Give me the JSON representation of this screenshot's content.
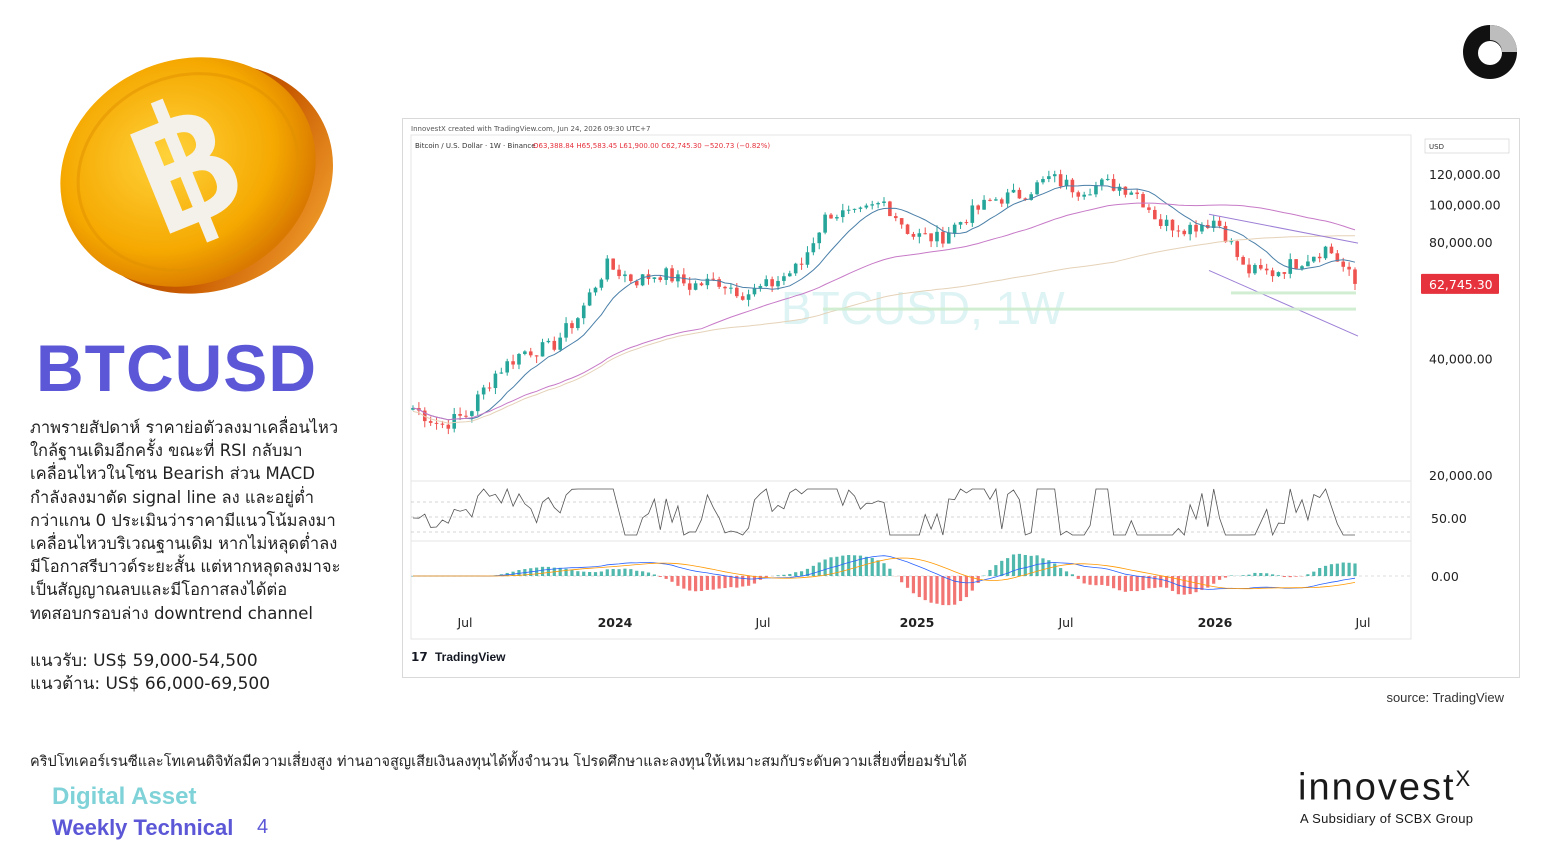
{
  "ticker": "BTCUSD",
  "description_lines": [
    "ภาพรายสัปดาห์ ราคาย่อตัวลงมาเคลื่อนไหว",
    "ใกล้ฐานเดิมอีกครั้ง ขณะที่ RSI กลับมา",
    "เคลื่อนไหวในโซน Bearish ส่วน MACD",
    "กำลังลงมาตัด signal line ลง และอยู่ต่ำ",
    "กว่าแกน 0 ประเมินว่าราคามีแนวโน้มลงมา",
    "เคลื่อนไหวบริเวณฐานเดิม หากไม่หลุดต่ำลง",
    "มีโอกาสรีบาวด์ระยะสั้น แต่หากหลุดลงมาจะ",
    "เป็นสัญญาณลบและมีโอกาสลงได้ต่อ",
    "ทดสอบกรอบล่าง downtrend channel"
  ],
  "support": "แนวรับ: US$ 59,000-54,500",
  "resistance": "แนวต้าน: US$ 66,000-69,500",
  "source": "source: TradingView",
  "disclaimer": "คริปโทเคอร์เรนซีและโทเคนดิจิทัลมีความเสี่ยงสูง ท่านอาจสูญเสียเงินลงทุนได้ทั้งจำนวน โปรดศึกษาและลงทุนให้เหมาะสมกับระดับความเสี่ยงที่ยอมรับได้",
  "brand_line1": "Digital Asset",
  "brand_line2": "Weekly Technical",
  "page_number": "4",
  "logo_word": "innovest",
  "logo_sup": "X",
  "logo_tagline": "A Subsidiary of SCBX Group",
  "colors": {
    "accent_purple": "#5b57d6",
    "accent_teal": "#7fd3d8",
    "candle_up": "#26a69a",
    "candle_down": "#ef5350",
    "price_tag": "#e5323d"
  },
  "chart_data": {
    "type": "candlestick",
    "header_line": "InnovestX created with TradingView.com, Jun 24, 2026 09:30 UTC+7",
    "symbol_line": "Bitcoin / U.S. Dollar · 1W · Binance",
    "ohlc_line": "O63,388.84 H65,583.45 L61,900.00 C62,745.30 −520.73 (−0.82%)",
    "watermark": "BTCUSD, 1W",
    "currency": "USD",
    "price_axis_labels": [
      "120,000.00",
      "100,000.00",
      "80,000.00",
      "40,000.00",
      "20,000.00"
    ],
    "price_axis_values": [
      120000,
      100000,
      80000,
      40000,
      20000
    ],
    "last_price": 62745.3,
    "last_price_label": "62,745.30",
    "rsi_axis_label": "50.00",
    "macd_axis_label": "0.00",
    "x_axis_labels": [
      "Jul",
      "2024",
      "Jul",
      "2025",
      "Jul",
      "2026",
      "Jul"
    ],
    "branding": "TradingView",
    "price_series_approx": [
      [
        "2023-06",
        30000
      ],
      [
        "2023-08",
        27000
      ],
      [
        "2023-10",
        29000
      ],
      [
        "2023-11",
        37000
      ],
      [
        "2023-12",
        42000
      ],
      [
        "2024-01",
        43000
      ],
      [
        "2024-02",
        52000
      ],
      [
        "2024-03",
        70000
      ],
      [
        "2024-04",
        64000
      ],
      [
        "2024-05",
        67000
      ],
      [
        "2024-06",
        62000
      ],
      [
        "2024-07",
        64000
      ],
      [
        "2024-08",
        59000
      ],
      [
        "2024-09",
        63000
      ],
      [
        "2024-10",
        70000
      ],
      [
        "2024-11",
        96000
      ],
      [
        "2024-12",
        94000
      ],
      [
        "2025-01",
        102000
      ],
      [
        "2025-02",
        84000
      ],
      [
        "2025-03",
        82000
      ],
      [
        "2025-04",
        94000
      ],
      [
        "2025-05",
        104000
      ],
      [
        "2025-06",
        107000
      ],
      [
        "2025-07",
        118000
      ],
      [
        "2025-08",
        110000
      ],
      [
        "2025-09",
        114000
      ],
      [
        "2025-10",
        110000
      ],
      [
        "2025-11",
        90000
      ],
      [
        "2025-12",
        88000
      ],
      [
        "2026-01",
        92000
      ],
      [
        "2026-02",
        68000
      ],
      [
        "2026-03",
        67000
      ],
      [
        "2026-04",
        72000
      ],
      [
        "2026-05",
        78000
      ],
      [
        "2026-06",
        62745
      ]
    ]
  }
}
